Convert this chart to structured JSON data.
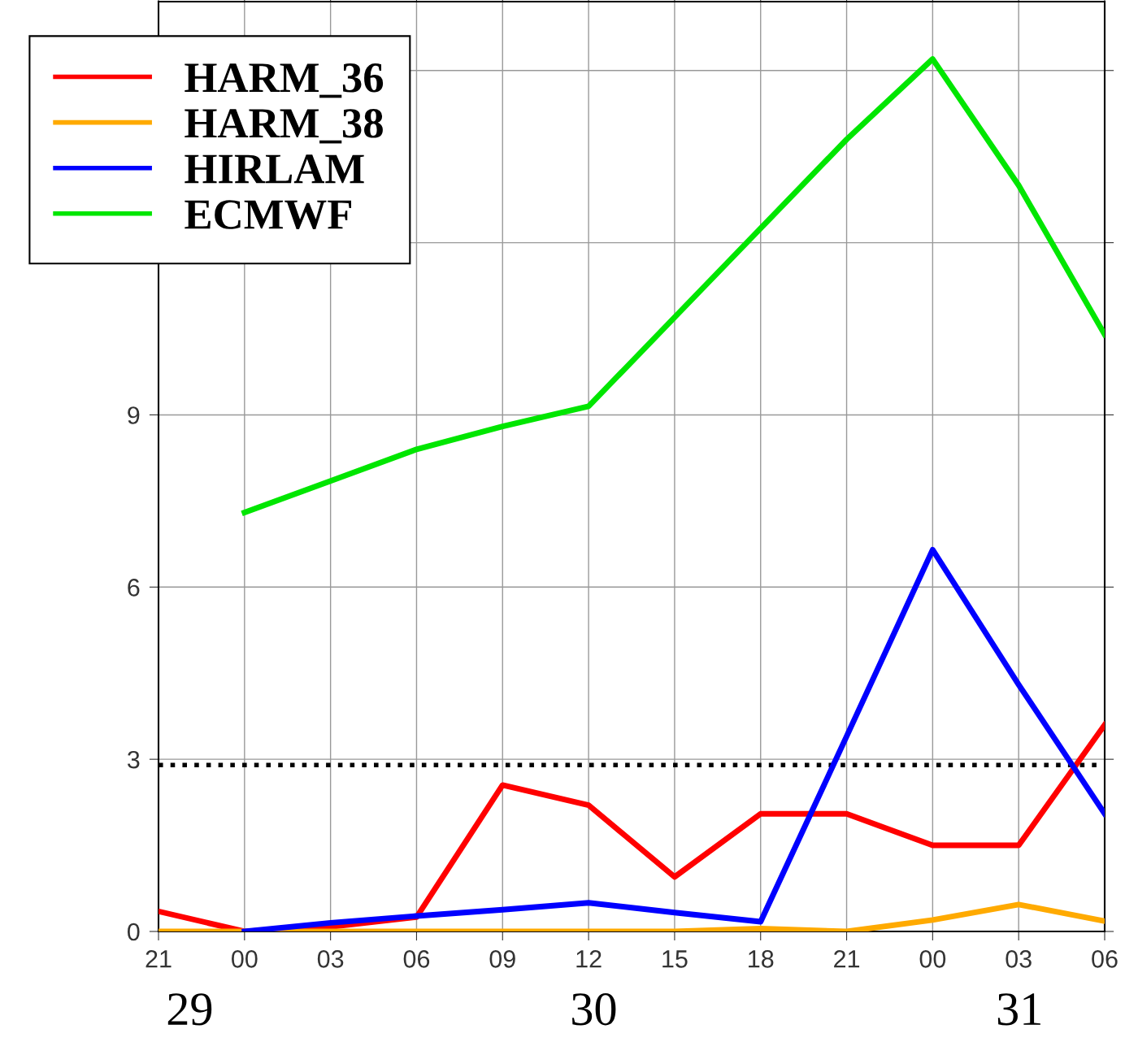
{
  "chart_data": {
    "type": "line",
    "categories": [
      "21",
      "00",
      "03",
      "06",
      "09",
      "12",
      "15",
      "18",
      "21",
      "00",
      "03",
      "06"
    ],
    "series": [
      {
        "name": "HARM_36",
        "color": "#ff0000",
        "values": [
          0.35,
          0.0,
          0.08,
          0.25,
          2.55,
          2.2,
          0.95,
          2.05,
          2.05,
          1.5,
          1.5,
          3.6
        ]
      },
      {
        "name": "HARM_38",
        "color": "#ffaa00",
        "values": [
          0.0,
          0.0,
          0.0,
          0.0,
          0.0,
          0.0,
          0.0,
          0.05,
          0.0,
          0.2,
          0.47,
          0.18
        ]
      },
      {
        "name": "HIRLAM",
        "color": "#0000ff",
        "values": [
          null,
          0.0,
          0.15,
          0.27,
          0.38,
          0.5,
          0.33,
          0.17,
          3.4,
          6.65,
          4.3,
          2.05
        ]
      },
      {
        "name": "ECMWF",
        "color": "#00e600",
        "values": [
          null,
          7.3,
          7.85,
          8.4,
          8.8,
          9.15,
          10.7,
          12.25,
          13.8,
          15.2,
          13.0,
          10.4
        ]
      }
    ],
    "annotations": [
      "29",
      "30",
      "31"
    ],
    "ylim": [
      0,
      16.2
    ],
    "yticks": [
      0,
      3,
      6,
      9,
      {
        "value": 12,
        "label": null
      },
      {
        "value": 15,
        "label": null
      }
    ],
    "ref_lines": [
      {
        "axis": "y",
        "value": 2.9,
        "color": "#000000",
        "line_style": "dotted"
      }
    ],
    "grid": true,
    "legend": "top left",
    "line_style": "solid",
    "marker": "none"
  }
}
